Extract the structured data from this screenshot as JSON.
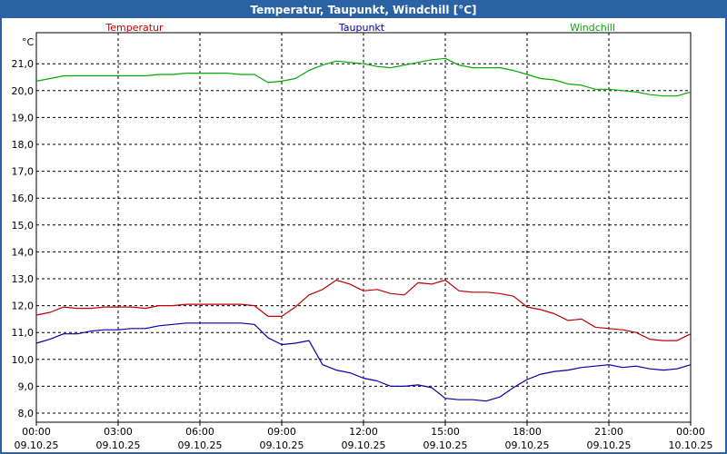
{
  "window": {
    "title": "Temperatur, Taupunkt, Windchill [°C]"
  },
  "chart_data": {
    "type": "line",
    "title": "Temperatur, Taupunkt, Windchill [°C]",
    "ylabel": "°C",
    "ylim": [
      8.0,
      21.5
    ],
    "yticks": [
      "8,0",
      "9,0",
      "10,0",
      "11,0",
      "12,0",
      "13,0",
      "14,0",
      "15,0",
      "16,0",
      "17,0",
      "18,0",
      "19,0",
      "20,0",
      "21,0"
    ],
    "xticks": [
      {
        "time": "00:00",
        "date": "09.10.25"
      },
      {
        "time": "03:00",
        "date": "09.10.25"
      },
      {
        "time": "06:00",
        "date": "09.10.25"
      },
      {
        "time": "09:00",
        "date": "09.10.25"
      },
      {
        "time": "12:00",
        "date": "09.10.25"
      },
      {
        "time": "15:00",
        "date": "09.10.25"
      },
      {
        "time": "18:00",
        "date": "09.10.25"
      },
      {
        "time": "21:00",
        "date": "09.10.25"
      },
      {
        "time": "00:00",
        "date": "10.10.25"
      }
    ],
    "x_hours": [
      0,
      0.5,
      1,
      1.5,
      2,
      2.5,
      3,
      3.5,
      4,
      4.5,
      5,
      5.5,
      6,
      6.5,
      7,
      7.5,
      8,
      8.5,
      9,
      9.5,
      10,
      10.5,
      11,
      11.5,
      12,
      12.5,
      13,
      13.5,
      14,
      14.5,
      15,
      15.5,
      16,
      16.5,
      17,
      17.5,
      18,
      18.5,
      19,
      19.5,
      20,
      20.5,
      21,
      21.5,
      22,
      22.5,
      23,
      23.5,
      24
    ],
    "series": [
      {
        "name": "Temperatur",
        "color": "#c00000",
        "values": [
          11.65,
          11.75,
          11.95,
          11.9,
          11.9,
          11.95,
          11.95,
          11.95,
          11.9,
          12.0,
          12.0,
          12.05,
          12.05,
          12.05,
          12.05,
          12.05,
          12.0,
          11.6,
          11.6,
          11.95,
          12.4,
          12.6,
          12.95,
          12.8,
          12.55,
          12.6,
          12.45,
          12.4,
          12.85,
          12.8,
          12.95,
          12.55,
          12.5,
          12.5,
          12.45,
          12.35,
          11.95,
          11.85,
          11.7,
          11.45,
          11.5,
          11.2,
          11.15,
          11.1,
          11.0,
          10.75,
          10.7,
          10.7,
          10.95
        ]
      },
      {
        "name": "Taupunkt",
        "color": "#0000aa",
        "values": [
          10.6,
          10.75,
          10.95,
          10.95,
          11.05,
          11.1,
          11.1,
          11.15,
          11.15,
          11.25,
          11.3,
          11.35,
          11.35,
          11.35,
          11.35,
          11.35,
          11.3,
          10.8,
          10.55,
          10.6,
          10.7,
          9.8,
          9.6,
          9.5,
          9.3,
          9.2,
          9.0,
          9.0,
          9.05,
          8.95,
          8.55,
          8.5,
          8.5,
          8.45,
          8.6,
          8.95,
          9.25,
          9.45,
          9.55,
          9.6,
          9.7,
          9.75,
          9.8,
          9.7,
          9.75,
          9.65,
          9.6,
          9.65,
          9.8
        ]
      },
      {
        "name": "Windchill",
        "color": "#00aa00",
        "values": [
          20.35,
          20.45,
          20.55,
          20.55,
          20.55,
          20.55,
          20.55,
          20.55,
          20.55,
          20.6,
          20.6,
          20.65,
          20.65,
          20.65,
          20.65,
          20.6,
          20.6,
          20.3,
          20.35,
          20.45,
          20.75,
          20.95,
          21.1,
          21.05,
          21.0,
          20.9,
          20.85,
          20.95,
          21.05,
          21.15,
          21.2,
          20.95,
          20.85,
          20.85,
          20.85,
          20.75,
          20.6,
          20.45,
          20.4,
          20.25,
          20.2,
          20.05,
          20.05,
          20.0,
          19.95,
          19.85,
          19.8,
          19.8,
          19.95
        ]
      }
    ]
  }
}
